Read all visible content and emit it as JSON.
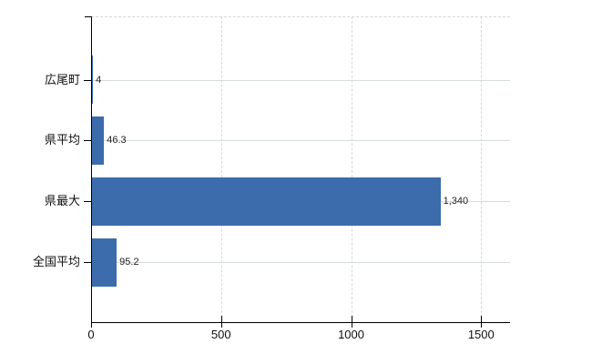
{
  "chart_data": {
    "type": "bar",
    "orientation": "horizontal",
    "title": "",
    "categories": [
      "広尾町",
      "県平均",
      "県最大",
      "全国平均"
    ],
    "values": [
      4,
      46.3,
      1340,
      95.2
    ],
    "value_labels": [
      "4",
      "46.3",
      "1,340",
      "95.2"
    ],
    "x_ticks": [
      0,
      500,
      1000,
      1500
    ],
    "x_tick_labels": [
      "0",
      "500",
      "1000",
      "1500"
    ],
    "xlim": [
      0,
      1610
    ],
    "grid": true,
    "legend": false,
    "colors": {
      "bar": "#3c6cab",
      "axis": "#000000",
      "vertical_gridline": "#d8d8dc",
      "horizontal_gridline": "#d6ddd6",
      "plot_top_border": "#d6d6da",
      "text": "#111111"
    }
  }
}
